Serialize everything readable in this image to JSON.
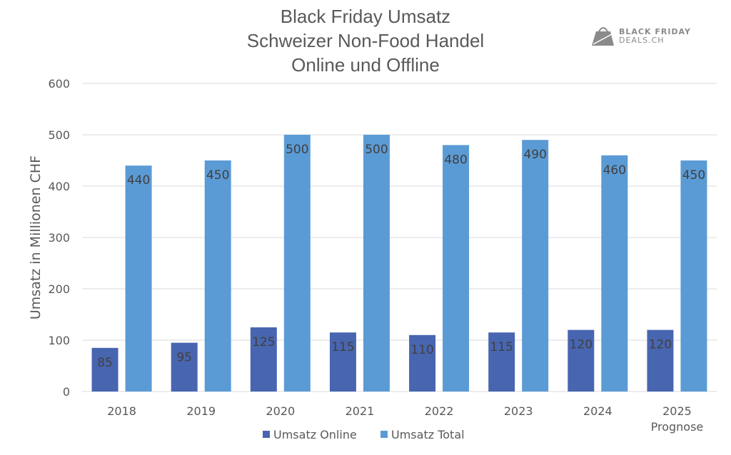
{
  "logo": {
    "line1": "BLACK FRIDAY",
    "line2": "DEALS.CH"
  },
  "chart_data": {
    "type": "bar",
    "title": [
      "Black Friday Umsatz",
      "Schweizer Non-Food Handel",
      "Online und Offline"
    ],
    "ylabel": "Umsatz in Millionen CHF",
    "xlabel": "",
    "ylim": [
      0,
      600
    ],
    "yticks": [
      0,
      100,
      200,
      300,
      400,
      500,
      600
    ],
    "grid": true,
    "legend": "bottom",
    "categories": [
      "2018",
      "2019",
      "2020",
      "2021",
      "2022",
      "2023",
      "2024",
      "2025\nPrognose"
    ],
    "series": [
      {
        "name": "Umsatz Online",
        "color": "#4865b0",
        "values": [
          85,
          95,
          125,
          115,
          110,
          115,
          120,
          120
        ]
      },
      {
        "name": "Umsatz Total",
        "color": "#5b9bd5",
        "values": [
          440,
          450,
          500,
          500,
          480,
          490,
          460,
          450
        ]
      }
    ]
  }
}
